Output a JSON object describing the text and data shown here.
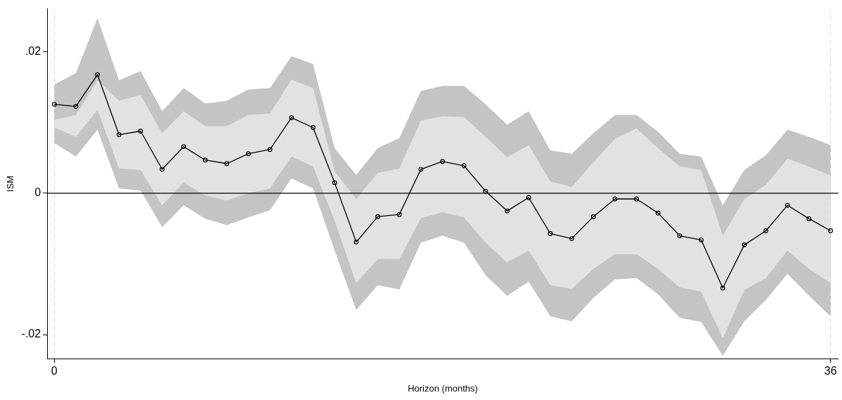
{
  "chart_data": {
    "type": "line",
    "xlabel": "Horizon (months)",
    "ylabel": "ISM",
    "x": [
      0,
      1,
      2,
      3,
      4,
      5,
      6,
      7,
      8,
      9,
      10,
      11,
      12,
      13,
      14,
      15,
      16,
      17,
      18,
      19,
      20,
      21,
      22,
      23,
      24,
      25,
      26,
      27,
      28,
      29,
      30,
      31,
      32,
      33,
      34,
      35,
      36
    ],
    "xlim": [
      -0.33,
      36.36
    ],
    "xticks": [
      0,
      36
    ],
    "ylim": [
      -0.0234,
      0.0261
    ],
    "yticks": [
      {
        "value": -0.02,
        "label": "-.02"
      },
      0,
      {
        "value": 0.02,
        "label": ".02"
      }
    ],
    "grid": "x",
    "marker": "circle",
    "line_style": "solid",
    "ref_lines": [
      {
        "axis": "y",
        "value": 0,
        "color": "#000000"
      }
    ],
    "series": [
      {
        "color": "#000000",
        "values": [
          0.0126,
          0.0123,
          0.0168,
          0.0083,
          0.0088,
          0.0034,
          0.0066,
          0.0047,
          0.0042,
          0.0056,
          0.0062,
          0.0107,
          0.0093,
          0.0015,
          -0.0069,
          -0.0033,
          -0.003,
          0.0034,
          0.0045,
          0.0039,
          0.0003,
          -0.0025,
          -0.0006,
          -0.0057,
          -0.0064,
          -0.0033,
          -0.0008,
          -0.0008,
          -0.0028,
          -0.006,
          -0.0066,
          -0.0134,
          -0.0073,
          -0.0053,
          -0.0017,
          -0.0036,
          -0.0053
        ],
        "lower": [
          0.0071,
          0.0052,
          0.009,
          0.0007,
          0.0004,
          -0.0048,
          -0.0017,
          -0.0036,
          -0.0045,
          -0.0034,
          -0.0024,
          0.0021,
          0.0007,
          -0.0081,
          -0.0165,
          -0.013,
          -0.0136,
          -0.007,
          -0.006,
          -0.007,
          -0.0116,
          -0.0145,
          -0.0125,
          -0.0174,
          -0.0181,
          -0.0148,
          -0.0122,
          -0.012,
          -0.0143,
          -0.0176,
          -0.0182,
          -0.023,
          -0.0181,
          -0.0151,
          -0.0114,
          -0.0145,
          -0.0174
        ],
        "upper": [
          0.0154,
          0.017,
          0.0248,
          0.016,
          0.0173,
          0.0116,
          0.0149,
          0.0127,
          0.0131,
          0.0147,
          0.0149,
          0.0194,
          0.0183,
          0.0064,
          0.0026,
          0.0064,
          0.0078,
          0.0145,
          0.0152,
          0.0152,
          0.0126,
          0.0097,
          0.0116,
          0.0061,
          0.0056,
          0.0085,
          0.0111,
          0.0111,
          0.0087,
          0.0056,
          0.0052,
          -0.0017,
          0.0033,
          0.0054,
          0.009,
          0.008,
          0.0068
        ]
      },
      {
        "color": "#e2e2e2",
        "values": [
          null,
          null,
          null,
          null,
          null,
          null,
          null,
          null,
          null,
          null,
          null,
          null,
          null,
          null,
          null,
          null,
          null,
          null,
          null,
          null,
          null,
          null,
          null,
          null,
          null,
          null,
          null,
          null,
          null,
          null,
          null,
          null,
          null,
          null,
          null,
          null,
          null
        ],
        "lower": [
          0.0093,
          0.008,
          0.0118,
          0.0035,
          0.0033,
          -0.0017,
          0.0015,
          -0.0003,
          -0.001,
          0,
          0.0007,
          0.0052,
          0.0038,
          -0.0039,
          -0.0127,
          -0.0093,
          -0.0093,
          -0.0035,
          -0.0027,
          -0.0034,
          -0.007,
          -0.0098,
          -0.0081,
          -0.013,
          -0.0135,
          -0.0107,
          -0.0086,
          -0.0086,
          -0.0107,
          -0.0133,
          -0.0139,
          -0.0205,
          -0.0137,
          -0.012,
          -0.0081,
          -0.0107,
          -0.0127
        ],
        "upper": [
          0.0104,
          0.0111,
          0.016,
          0.0131,
          0.0139,
          0.0085,
          0.0116,
          0.0095,
          0.0095,
          0.0111,
          0.0113,
          0.0161,
          0.0149,
          0.0031,
          -0.0008,
          0.0029,
          0.0035,
          0.0103,
          0.0109,
          0.0108,
          0.008,
          0.0051,
          0.0068,
          0.0017,
          0.0009,
          0.0044,
          0.0077,
          0.0092,
          0.0064,
          0.0038,
          0.0033,
          -0.006,
          -0.0008,
          0.0012,
          0.0049,
          0.0038,
          0.0025
        ]
      }
    ]
  }
}
